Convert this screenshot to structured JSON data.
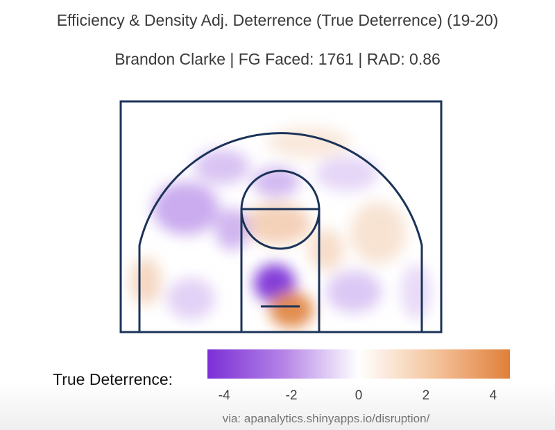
{
  "chart_data": {
    "type": "heatmap",
    "title": "Efficiency & Density Adj. Deterrence (True Deterrence) (19-20)",
    "subtitle": "Brandon Clarke | FG Faced: 1761 | RAD: 0.86",
    "legend": {
      "label": "True Deterrence:",
      "min": -4.5,
      "max": 4.5,
      "ticks": [
        "-4",
        "-2",
        "0",
        "2",
        "4"
      ],
      "tick_values": [
        -4,
        -2,
        0,
        2,
        4
      ],
      "low_color": "#7b2fd6",
      "mid_color": "#ffffff",
      "high_color": "#e07f3a"
    },
    "hotspots": [
      {
        "region": "restricted area left",
        "value": -4.2
      },
      {
        "region": "restricted area right",
        "value": 4.0
      },
      {
        "region": "free throw circle",
        "value": 1.6
      },
      {
        "region": "upper key",
        "value": -1.5
      },
      {
        "region": "left wing three",
        "value": -1.8
      },
      {
        "region": "left corner",
        "value": 1.4
      },
      {
        "region": "right wing",
        "value": 1.0
      },
      {
        "region": "top of arc",
        "value": 0.8
      },
      {
        "region": "right mid-range",
        "value": -1.2
      },
      {
        "region": "right corner",
        "value": -0.8
      },
      {
        "region": "left baseline",
        "value": -1.0
      },
      {
        "region": "above break left",
        "value": -1.3
      },
      {
        "region": "above break right",
        "value": -0.9
      },
      {
        "region": "left elbow",
        "value": -1.6
      },
      {
        "region": "right elbow",
        "value": 1.2
      }
    ]
  },
  "colors": {
    "court_lines": "#1b3358",
    "title_text": "#3a3a3a"
  },
  "footer": "via: apanalytics.shinyapps.io/disruption/"
}
